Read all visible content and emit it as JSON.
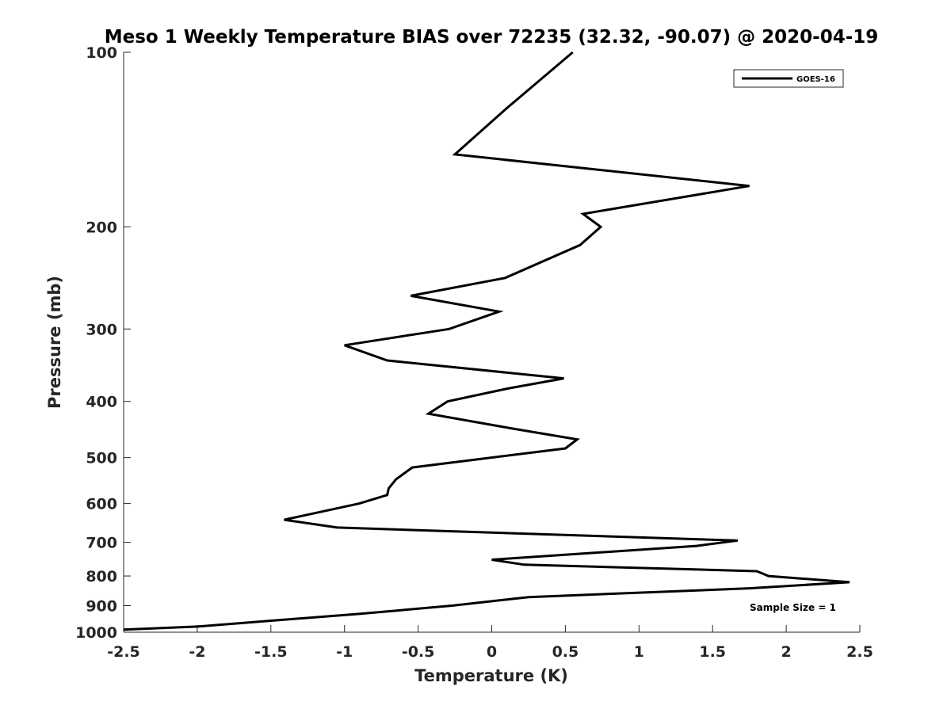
{
  "chart_data": {
    "type": "line",
    "title": "Meso 1 Weekly Temperature BIAS over 72235 (32.32, -90.07) @ 2020-04-19",
    "xlabel": "Temperature (K)",
    "ylabel": "Pressure (mb)",
    "xlim": [
      -2.5,
      2.5
    ],
    "ylim": [
      100,
      1000
    ],
    "yscale": "log",
    "yreversed": true,
    "grid": false,
    "legend_position": "top-right",
    "xticks": [
      -2.5,
      -2,
      -1.5,
      -1,
      -0.5,
      0,
      0.5,
      1,
      1.5,
      2,
      2.5
    ],
    "xtick_labels": [
      "-2.5",
      "-2",
      "-1.5",
      "-1",
      "-0.5",
      "0",
      "0.5",
      "1",
      "1.5",
      "2",
      "2.5"
    ],
    "yticks": [
      100,
      200,
      300,
      400,
      500,
      600,
      700,
      800,
      900,
      1000
    ],
    "ytick_labels": [
      "100",
      "200",
      "300",
      "400",
      "500",
      "600",
      "700",
      "800",
      "900",
      "1000"
    ],
    "annotation": "Sample Size = 1",
    "line_color": "#000000",
    "series": [
      {
        "name": "GOES-16",
        "x": [
          0.55,
          0.1,
          -0.25,
          1.75,
          0.62,
          0.74,
          0.6,
          0.09,
          -0.55,
          0.05,
          -0.29,
          -1.0,
          -0.71,
          0.49,
          0.11,
          -0.3,
          -0.43,
          0.13,
          0.58,
          0.5,
          -0.54,
          -0.65,
          -0.7,
          -0.71,
          -0.9,
          -1.41,
          -1.05,
          1.67,
          1.39,
          0.0,
          0.22,
          1.8,
          1.88,
          2.43,
          1.75,
          0.25,
          -0.27,
          -0.9,
          -1.49,
          -2.0,
          -2.5
        ],
        "y": [
          100,
          125,
          150,
          170,
          190,
          200,
          215,
          245,
          263,
          280,
          300,
          320,
          340,
          365,
          380,
          400,
          420,
          445,
          465,
          482,
          520,
          545,
          565,
          580,
          600,
          640,
          660,
          695,
          710,
          750,
          765,
          785,
          800,
          820,
          840,
          870,
          900,
          930,
          955,
          978,
          990
        ]
      }
    ]
  }
}
